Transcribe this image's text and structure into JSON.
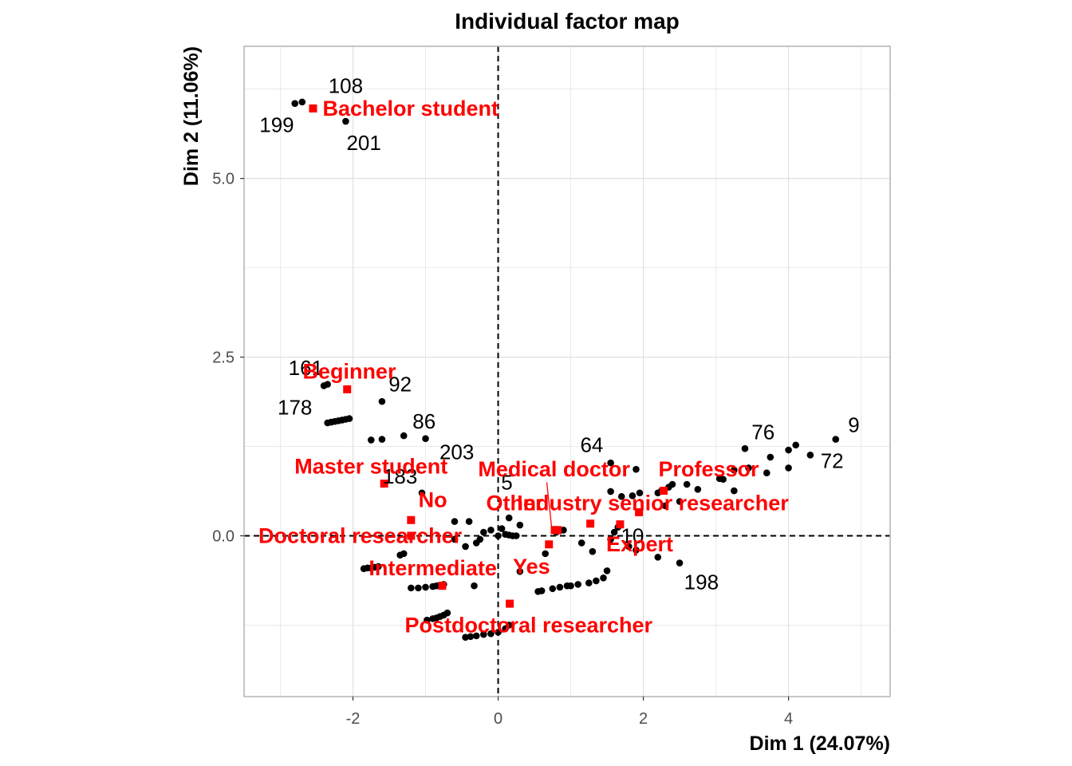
{
  "chart_data": {
    "type": "scatter",
    "title": "Individual factor map",
    "xlabel": "Dim 1 (24.07%)",
    "ylabel": "Dim 2 (11.06%)",
    "xlim": [
      -3.5,
      5.4
    ],
    "ylim": [
      -2.25,
      6.85
    ],
    "x_ticks": [
      -2,
      0,
      2,
      4
    ],
    "x_tick_labels": [
      "-2",
      "0",
      "2",
      "4"
    ],
    "y_ticks": [
      0,
      2.5,
      5
    ],
    "y_tick_labels": [
      "0.0",
      "2.5",
      "5.0"
    ],
    "grid": true,
    "reference_lines": {
      "x": 0,
      "y": 0,
      "style": "dashed"
    },
    "colors": {
      "individuals": "#000000",
      "categories": "#ff0000",
      "grid": "#dedede",
      "panel_border": "#b3b3b3"
    },
    "individuals": [
      {
        "x": -2.8,
        "y": 6.05
      },
      {
        "x": -2.7,
        "y": 6.07
      },
      {
        "x": -2.1,
        "y": 5.8
      },
      {
        "x": -2.4,
        "y": 2.1
      },
      {
        "x": -2.35,
        "y": 2.12
      },
      {
        "x": -1.6,
        "y": 1.88
      },
      {
        "x": -2.35,
        "y": 1.58
      },
      {
        "x": -2.3,
        "y": 1.59
      },
      {
        "x": -2.25,
        "y": 1.6
      },
      {
        "x": -2.2,
        "y": 1.61
      },
      {
        "x": -2.15,
        "y": 1.62
      },
      {
        "x": -2.1,
        "y": 1.63
      },
      {
        "x": -2.05,
        "y": 1.64
      },
      {
        "x": -1.75,
        "y": 1.34
      },
      {
        "x": -1.6,
        "y": 1.35
      },
      {
        "x": -1.3,
        "y": 1.4
      },
      {
        "x": -1.0,
        "y": 1.36
      },
      {
        "x": -1.05,
        "y": 0.6
      },
      {
        "x": -0.6,
        "y": 0.2
      },
      {
        "x": -0.4,
        "y": 0.2
      },
      {
        "x": -0.2,
        "y": 0.05
      },
      {
        "x": -0.1,
        "y": 0.08
      },
      {
        "x": 0.05,
        "y": 0.1
      },
      {
        "x": 0.0,
        "y": 0.0
      },
      {
        "x": 0.1,
        "y": 0.02
      },
      {
        "x": 0.15,
        "y": 0.01
      },
      {
        "x": 0.2,
        "y": 0.0
      },
      {
        "x": 0.25,
        "y": 0.0
      },
      {
        "x": -0.25,
        "y": -0.05
      },
      {
        "x": -0.3,
        "y": -0.1
      },
      {
        "x": -0.45,
        "y": -0.15
      },
      {
        "x": -0.6,
        "y": -0.05
      },
      {
        "x": -1.3,
        "y": -0.25
      },
      {
        "x": -1.35,
        "y": -0.27
      },
      {
        "x": -1.8,
        "y": -0.45
      },
      {
        "x": -1.85,
        "y": -0.46
      },
      {
        "x": -1.75,
        "y": -0.45
      },
      {
        "x": -1.7,
        "y": -0.44
      },
      {
        "x": -1.65,
        "y": -0.43
      },
      {
        "x": -1.2,
        "y": -0.73
      },
      {
        "x": -1.1,
        "y": -0.73
      },
      {
        "x": -1.0,
        "y": -0.72
      },
      {
        "x": -0.9,
        "y": -0.71
      },
      {
        "x": -0.85,
        "y": -0.7
      },
      {
        "x": -0.8,
        "y": -0.69
      },
      {
        "x": -0.75,
        "y": -0.68
      },
      {
        "x": -0.33,
        "y": -0.7
      },
      {
        "x": -0.98,
        "y": -1.18
      },
      {
        "x": -0.9,
        "y": -1.16
      },
      {
        "x": -0.85,
        "y": -1.15
      },
      {
        "x": -0.8,
        "y": -1.13
      },
      {
        "x": -0.75,
        "y": -1.11
      },
      {
        "x": -0.7,
        "y": -1.08
      },
      {
        "x": -0.45,
        "y": -1.42
      },
      {
        "x": -0.38,
        "y": -1.41
      },
      {
        "x": -0.3,
        "y": -1.4
      },
      {
        "x": -0.2,
        "y": -1.38
      },
      {
        "x": -0.1,
        "y": -1.37
      },
      {
        "x": 0.0,
        "y": -1.35
      },
      {
        "x": 0.1,
        "y": -1.3
      },
      {
        "x": 0.15,
        "y": -1.25
      },
      {
        "x": 0.55,
        "y": -0.78
      },
      {
        "x": 0.6,
        "y": -0.77
      },
      {
        "x": 0.75,
        "y": -0.74
      },
      {
        "x": 0.85,
        "y": -0.72
      },
      {
        "x": 0.95,
        "y": -0.7
      },
      {
        "x": 1.0,
        "y": -0.7
      },
      {
        "x": 1.1,
        "y": -0.68
      },
      {
        "x": 1.25,
        "y": -0.66
      },
      {
        "x": 1.35,
        "y": -0.63
      },
      {
        "x": 1.45,
        "y": -0.59
      },
      {
        "x": 1.5,
        "y": -0.49
      },
      {
        "x": 0.15,
        "y": 0.25
      },
      {
        "x": 0.3,
        "y": 0.15
      },
      {
        "x": 0.3,
        "y": -0.5
      },
      {
        "x": 0.65,
        "y": -0.25
      },
      {
        "x": 0.8,
        "y": 0.05
      },
      {
        "x": 0.85,
        "y": 0.07
      },
      {
        "x": 0.9,
        "y": 0.08
      },
      {
        "x": 1.15,
        "y": -0.1
      },
      {
        "x": 1.3,
        "y": -0.22
      },
      {
        "x": 1.55,
        "y": -0.05
      },
      {
        "x": 1.6,
        "y": 0.05
      },
      {
        "x": 1.65,
        "y": 0.12
      },
      {
        "x": 1.8,
        "y": -0.15
      },
      {
        "x": 1.9,
        "y": -0.2
      },
      {
        "x": 2.2,
        "y": -0.3
      },
      {
        "x": 2.5,
        "y": -0.38
      },
      {
        "x": 1.55,
        "y": 0.62
      },
      {
        "x": 1.7,
        "y": 0.55
      },
      {
        "x": 1.85,
        "y": 0.56
      },
      {
        "x": 1.95,
        "y": 0.6
      },
      {
        "x": 2.2,
        "y": 0.6
      },
      {
        "x": 2.25,
        "y": 0.63
      },
      {
        "x": 2.35,
        "y": 0.68
      },
      {
        "x": 2.4,
        "y": 0.72
      },
      {
        "x": 2.6,
        "y": 0.72
      },
      {
        "x": 2.75,
        "y": 0.65
      },
      {
        "x": 2.3,
        "y": 0.42
      },
      {
        "x": 2.5,
        "y": 0.48
      },
      {
        "x": 1.55,
        "y": 1.02
      },
      {
        "x": 1.9,
        "y": 0.93
      },
      {
        "x": 3.05,
        "y": 0.8
      },
      {
        "x": 3.1,
        "y": 0.79
      },
      {
        "x": 3.25,
        "y": 0.92
      },
      {
        "x": 3.45,
        "y": 0.95
      },
      {
        "x": 3.4,
        "y": 1.22
      },
      {
        "x": 3.7,
        "y": 0.88
      },
      {
        "x": 3.75,
        "y": 1.1
      },
      {
        "x": 3.25,
        "y": 0.63
      },
      {
        "x": 4.0,
        "y": 0.95
      },
      {
        "x": 4.0,
        "y": 1.2
      },
      {
        "x": 4.1,
        "y": 1.27
      },
      {
        "x": 4.3,
        "y": 1.13
      },
      {
        "x": 4.65,
        "y": 1.35
      }
    ],
    "individual_labels": [
      {
        "x": -2.1,
        "y": 6.3,
        "label": "108"
      },
      {
        "x": -3.05,
        "y": 5.75,
        "label": "199"
      },
      {
        "x": -1.85,
        "y": 5.5,
        "label": "201"
      },
      {
        "x": -2.65,
        "y": 2.35,
        "label": "161"
      },
      {
        "x": -1.35,
        "y": 2.12,
        "label": "92"
      },
      {
        "x": -2.8,
        "y": 1.8,
        "label": "178"
      },
      {
        "x": -1.02,
        "y": 1.6,
        "label": "86"
      },
      {
        "x": -0.57,
        "y": 1.17,
        "label": "203"
      },
      {
        "x": -1.35,
        "y": 0.83,
        "label": "183"
      },
      {
        "x": 0.12,
        "y": 0.75,
        "label": "5"
      },
      {
        "x": 1.29,
        "y": 1.27,
        "label": "64"
      },
      {
        "x": 1.85,
        "y": 0.0,
        "label": "10"
      },
      {
        "x": 2.8,
        "y": -0.65,
        "label": "198"
      },
      {
        "x": 3.65,
        "y": 1.45,
        "label": "76"
      },
      {
        "x": 4.9,
        "y": 1.55,
        "label": "9"
      },
      {
        "x": 4.6,
        "y": 1.05,
        "label": "72"
      }
    ],
    "categories": [
      {
        "name": "Bachelor student",
        "x": -2.55,
        "y": 5.98,
        "lx": -2.55,
        "ly": 5.98
      },
      {
        "name": "Beginner",
        "x": -2.08,
        "y": 2.05,
        "lx": -2.05,
        "ly": 2.3
      },
      {
        "name": "Master student",
        "x": -1.57,
        "y": 0.73,
        "lx": -1.75,
        "ly": 0.97
      },
      {
        "name": "No",
        "x": -1.2,
        "y": 0.22,
        "lx": -0.9,
        "ly": 0.5
      },
      {
        "name": "Doctoral researcher",
        "x": -1.2,
        "y": 0.0,
        "lx": -1.9,
        "ly": 0.0
      },
      {
        "name": "Intermediate",
        "x": -0.77,
        "y": -0.7,
        "lx": -0.9,
        "ly": -0.45
      },
      {
        "name": "Yes",
        "x": 0.7,
        "y": -0.12,
        "lx": 0.46,
        "ly": -0.43
      },
      {
        "name": "Postdoctoral researcher",
        "x": 0.16,
        "y": -0.95,
        "lx": 0.42,
        "ly": -1.25
      },
      {
        "name": "Medical doctor",
        "x": 0.78,
        "y": 0.08,
        "lx": 0.77,
        "ly": 0.93
      },
      {
        "name": "Other",
        "x": 0.82,
        "y": 0.08,
        "lx": 0.23,
        "ly": 0.46
      },
      {
        "name": "Industry senior researcher",
        "x": 1.27,
        "y": 0.17,
        "lx": 2.13,
        "ly": 0.46
      },
      {
        "name": "Expert",
        "x": 1.68,
        "y": 0.16,
        "lx": 1.95,
        "ly": -0.12
      },
      {
        "name": "Professor",
        "x": 1.94,
        "y": 0.33,
        "lx": 2.9,
        "ly": 0.93
      },
      {
        "name": "",
        "x": 2.28,
        "y": 0.63
      }
    ]
  }
}
